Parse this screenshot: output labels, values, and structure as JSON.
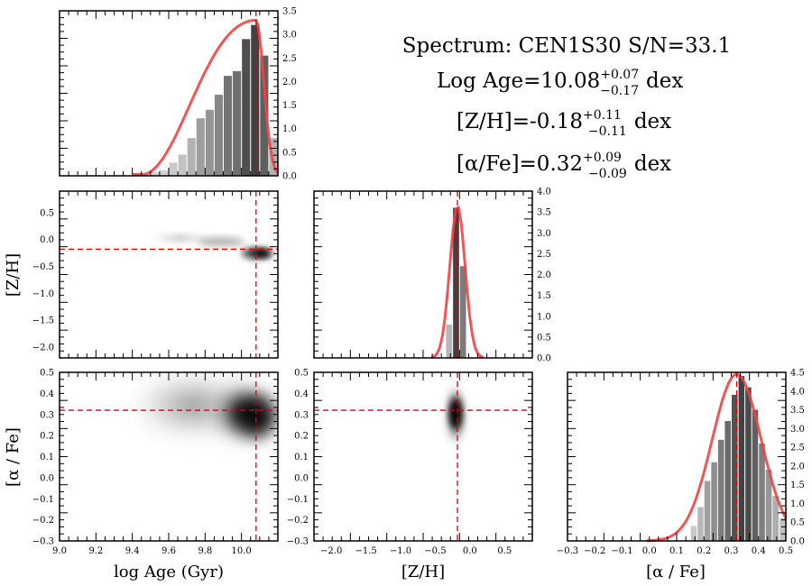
{
  "chart_data": [
    {
      "type": "bar",
      "name": "age-marginal",
      "xlim": [
        9.0,
        10.2
      ],
      "ylim": [
        0,
        3.5
      ],
      "yticks": [
        "0.0",
        "0.5",
        "1.0",
        "1.5",
        "2.0",
        "2.5",
        "3.0",
        "3.5"
      ],
      "bins_x": [
        9.425,
        9.475,
        9.525,
        9.575,
        9.625,
        9.675,
        9.725,
        9.775,
        9.825,
        9.875,
        9.925,
        9.975,
        10.025,
        10.075,
        10.125,
        10.175
      ],
      "values": [
        0.02,
        0.05,
        0.08,
        0.12,
        0.28,
        0.45,
        0.8,
        1.22,
        1.4,
        1.72,
        2.12,
        2.22,
        2.9,
        3.2,
        2.55,
        0.8
      ],
      "fit_curve": {
        "peak_x": 10.08,
        "peak_y": 3.3,
        "start_x": 9.4
      },
      "best_fit": 10.08
    },
    {
      "type": "bar",
      "name": "zh-marginal",
      "xlim": [
        -2.25,
        0.9
      ],
      "ylim": [
        0,
        4.0
      ],
      "yticks": [
        "0.0",
        "0.5",
        "1.0",
        "1.5",
        "2.0",
        "2.5",
        "3.0",
        "3.5",
        "4.0"
      ],
      "bins_x": [
        -0.3,
        -0.2,
        -0.1
      ],
      "values": [
        0.8,
        3.6,
        2.2
      ],
      "fit_curve": {
        "mean": -0.18,
        "sigma": 0.11,
        "peak_y": 3.65
      },
      "best_fit": -0.18
    },
    {
      "type": "bar",
      "name": "afe-marginal",
      "xlim": [
        -0.3,
        0.5
      ],
      "ylim": [
        0,
        4.5
      ],
      "yticks": [
        "0.0",
        "0.5",
        "1.0",
        "1.5",
        "2.0",
        "2.5",
        "3.0",
        "3.5",
        "4.0",
        "4.5"
      ],
      "xticks": [
        "−0.3",
        "−0.2",
        "−0.1",
        "0.0",
        "0.1",
        "0.2",
        "0.3",
        "0.4",
        "0.5"
      ],
      "xlabel": "[α / Fe]",
      "bins_x": [
        0.1625,
        0.1875,
        0.2125,
        0.2375,
        0.2625,
        0.2875,
        0.3125,
        0.3375,
        0.3625,
        0.3875,
        0.4125,
        0.4375,
        0.4625,
        0.4875
      ],
      "values": [
        0.4,
        0.9,
        1.6,
        2.1,
        2.7,
        3.2,
        3.9,
        4.4,
        4.1,
        3.5,
        2.6,
        1.9,
        1.2,
        0.6
      ],
      "fit_curve": {
        "mean": 0.32,
        "sigma": 0.09,
        "peak_y": 4.45
      },
      "best_fit": 0.32
    },
    {
      "type": "heatmap",
      "name": "age-vs-zh",
      "xlim": [
        9.0,
        10.2
      ],
      "ylim": [
        -2.2,
        0.9
      ],
      "yticks": [
        "−2.0",
        "−1.5",
        "−1.0",
        "−0.5",
        "0.0",
        "0.5"
      ],
      "ylabel": "[Z/H]",
      "best_fit": {
        "x": 10.08,
        "y": -0.18
      }
    },
    {
      "type": "heatmap",
      "name": "age-vs-afe",
      "xlim": [
        9.0,
        10.2
      ],
      "ylim": [
        -0.3,
        0.5
      ],
      "xticks": [
        "9.0",
        "9.2",
        "9.4",
        "9.6",
        "9.8",
        "10.0"
      ],
      "yticks": [
        "−0.3",
        "−0.2",
        "−0.1",
        "0.0",
        "0.1",
        "0.2",
        "0.3",
        "0.4",
        "0.5"
      ],
      "xlabel": "log Age (Gyr)",
      "ylabel": "[α / Fe]",
      "best_fit": {
        "x": 10.08,
        "y": 0.32
      }
    },
    {
      "type": "heatmap",
      "name": "zh-vs-afe",
      "xlim": [
        -2.25,
        0.9
      ],
      "ylim": [
        -0.3,
        0.5
      ],
      "xticks": [
        "−2.0",
        "−1.5",
        "−1.0",
        "−0.5",
        "0.0",
        "0.5"
      ],
      "yticks": [
        "−0.3",
        "−0.2",
        "−0.1",
        "0.0",
        "0.1",
        "0.2",
        "0.3",
        "0.4",
        "0.5"
      ],
      "xlabel": "[Z/H]",
      "best_fit": {
        "x": -0.18,
        "y": 0.32
      }
    }
  ],
  "summary": {
    "spectrum": "Spectrum: CEN1S30 S/N=33.1",
    "age_label": "Log Age=10.08",
    "age_up": "+0.07",
    "age_down": "−0.17",
    "zh_label": "[Z/H]=-0.18",
    "zh_up": "+0.11",
    "zh_down": "−0.11",
    "afe_label": "[α/Fe]=0.32",
    "afe_up": "+0.09",
    "afe_down": "−0.09",
    "unit": "dex"
  },
  "colors": {
    "fit_line": "#ee4444",
    "marker_line": "#dd0000",
    "bar_dark": "#555555",
    "bar_light": "#cccccc"
  }
}
